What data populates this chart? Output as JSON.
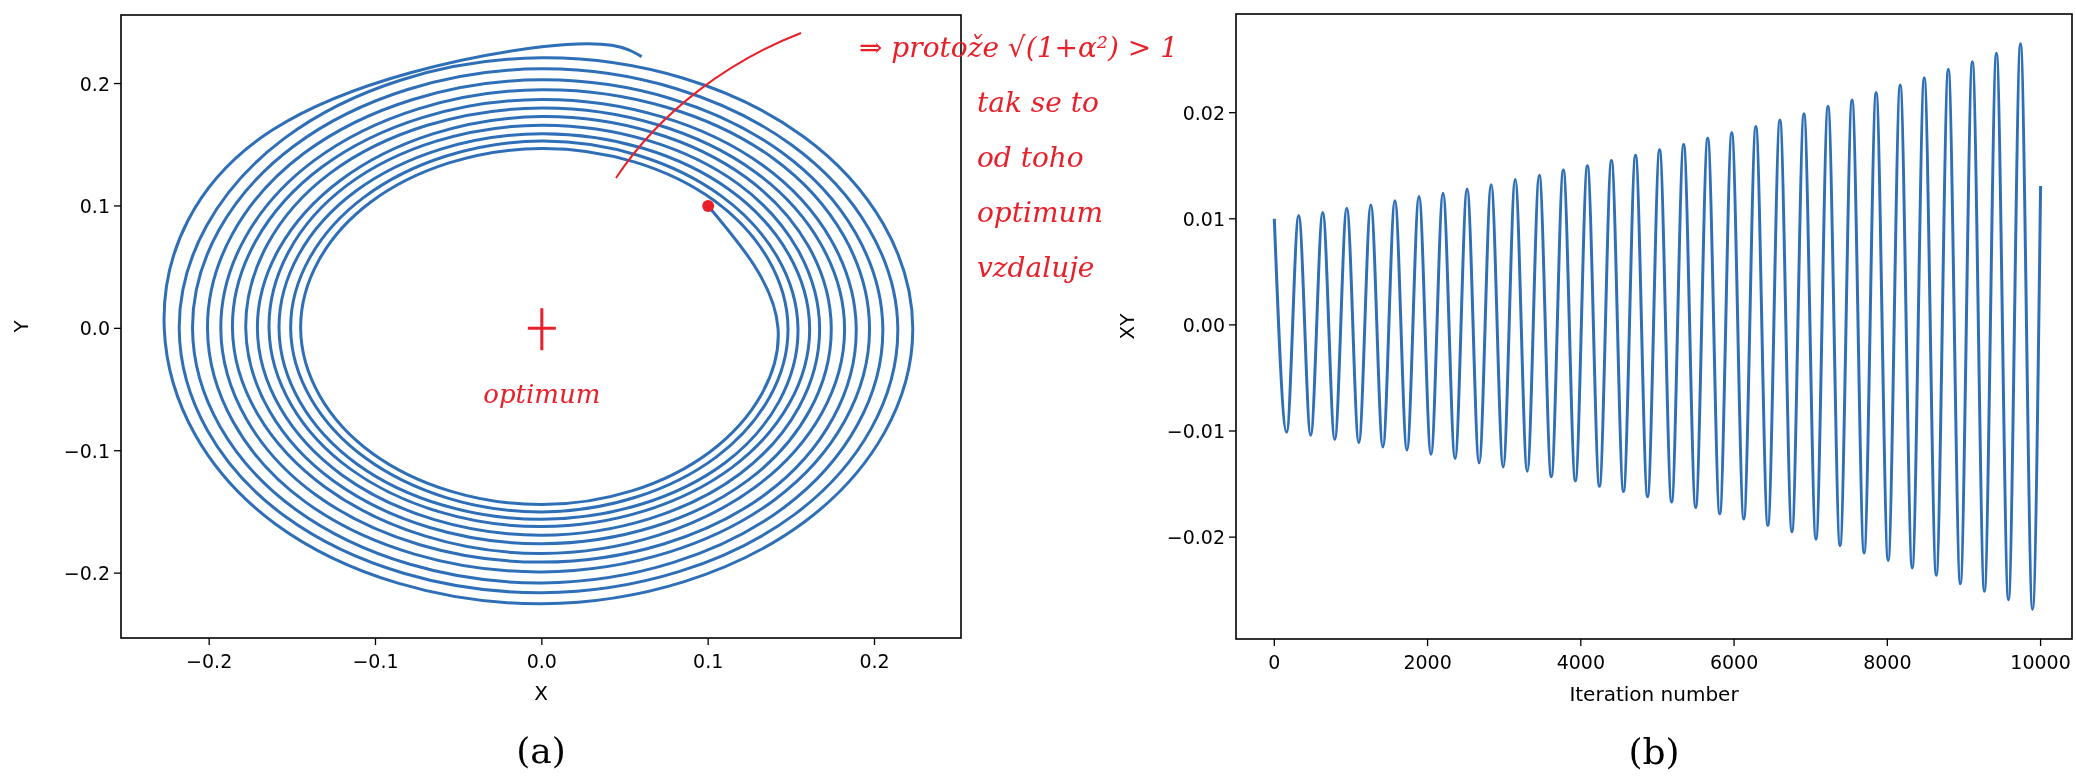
{
  "chart_data": [
    {
      "type": "line",
      "title": "(a)",
      "xlabel": "X",
      "ylabel": "Y",
      "xlim": [
        -0.253,
        0.252
      ],
      "ylim": [
        -0.253,
        0.256
      ],
      "xticks": [
        {
          "value": -0.2,
          "label": "−0.2"
        },
        {
          "value": -0.1,
          "label": "−0.1"
        },
        {
          "value": 0,
          "label": "0.0"
        },
        0.1,
        0.2
      ],
      "yticks": [
        {
          "value": -0.2,
          "label": "−0.2"
        },
        {
          "value": -0.1,
          "label": "−0.1"
        },
        {
          "value": 0,
          "label": "0.0"
        },
        0.1,
        0.2
      ],
      "grid": false,
      "annotations": [
        "⇒ protože √(1+α²) > 1 tak se to od toho optimum vzdaluje",
        {
          "text": "optimum",
          "x": 0,
          "y": 0
        }
      ],
      "series": [
        {
          "type": "line",
          "color": "#2e6fb7",
          "x": [
            0.1,
            0.142,
            0.101,
            0,
            -0.102,
            -0.145,
            -0.103,
            0,
            0.104,
            0.148,
            0.105,
            0,
            -0.106,
            -0.151,
            -0.107,
            0,
            0.108,
            0.154,
            0.11,
            0,
            -0.111,
            -0.158,
            -0.112,
            0,
            0.113,
            0.161,
            0.114,
            0,
            -0.115,
            -0.164,
            -0.117,
            0,
            0.118,
            0.167,
            0.119,
            0,
            -0.12,
            -0.171,
            -0.121,
            0,
            0.123,
            0.174,
            0.124,
            0,
            -0.125,
            -0.178,
            -0.127,
            0,
            0.128,
            0.182,
            0.129,
            0,
            -0.13,
            -0.186,
            -0.132,
            0,
            0.133,
            0.189,
            0.135,
            0,
            -0.136,
            -0.193,
            -0.137,
            0,
            0.139,
            0.197,
            0.14,
            0,
            -0.142,
            -0.201,
            -0.143,
            0,
            0.144,
            0.205,
            0.146,
            0,
            -0.148,
            -0.21,
            -0.149,
            0,
            0.15,
            0.214,
            0.152,
            0,
            -0.154,
            -0.218,
            -0.155,
            0,
            0.157,
            0.223,
            0.158,
            0,
            -0.16,
            -0.227,
            -0.162,
            0,
            0.06
          ],
          "values": [
            0.1,
            0,
            -0.101,
            -0.144,
            -0.102,
            0,
            0.103,
            0.147,
            0.104,
            0,
            -0.105,
            -0.15,
            -0.106,
            0,
            0.107,
            0.153,
            0.108,
            0,
            -0.11,
            -0.156,
            -0.111,
            0,
            0.112,
            0.159,
            0.113,
            0,
            -0.114,
            -0.162,
            -0.115,
            0,
            0.117,
            0.166,
            0.118,
            0,
            -0.119,
            -0.169,
            -0.12,
            0,
            0.121,
            0.173,
            0.123,
            0,
            -0.124,
            -0.176,
            -0.125,
            0,
            0.127,
            0.18,
            0.128,
            0,
            -0.129,
            -0.184,
            -0.13,
            0,
            0.132,
            0.187,
            0.133,
            0,
            -0.135,
            -0.191,
            -0.136,
            0,
            0.137,
            0.195,
            0.139,
            0,
            -0.14,
            -0.199,
            -0.142,
            0,
            0.143,
            0.203,
            0.144,
            0,
            -0.146,
            -0.208,
            -0.148,
            0,
            0.149,
            0.212,
            0.15,
            0,
            -0.152,
            -0.216,
            -0.154,
            0,
            0.155,
            0.221,
            0.157,
            0,
            -0.158,
            -0.225,
            -0.16,
            0,
            0.162,
            0.23,
            0.222
          ]
        },
        {
          "type": "scatter",
          "color": "#e8202a",
          "marker": "circle",
          "x": [
            0.1
          ],
          "values": [
            0.1
          ]
        },
        {
          "type": "scatter",
          "color": "#e8202a",
          "marker": "cross",
          "x": [
            0
          ],
          "values": [
            0
          ]
        }
      ]
    },
    {
      "type": "line",
      "title": "(b)",
      "xlabel": "Iteration number",
      "ylabel": "XY",
      "xlim": [
        -500,
        10410
      ],
      "ylim": [
        -0.0296,
        0.0293
      ],
      "xticks": [
        0,
        2000,
        4000,
        6000,
        8000,
        10000
      ],
      "yticks": [
        {
          "value": -0.02,
          "label": "−0.02"
        },
        {
          "value": -0.01,
          "label": "−0.01"
        },
        {
          "value": 0,
          "label": "0.00"
        },
        0.01,
        0.02
      ],
      "grid": false,
      "series": [
        {
          "type": "line",
          "color": "#2e6fb7",
          "x": [
            0,
            161,
            318,
            475,
            632,
            789,
            946,
            1103,
            1260,
            1417,
            1574,
            1731,
            1888,
            2045,
            2202,
            2359,
            2516,
            2673,
            2830,
            2987,
            3144,
            3301,
            3458,
            3615,
            3772,
            3929,
            4086,
            4243,
            4400,
            4557,
            4714,
            4871,
            5028,
            5185,
            5342,
            5499,
            5656,
            5813,
            5970,
            6127,
            6284,
            6441,
            6598,
            6755,
            6912,
            7069,
            7226,
            7383,
            7540,
            7697,
            7854,
            8011,
            8168,
            8325,
            8482,
            8639,
            8796,
            8953,
            9110,
            9267,
            9424,
            9581,
            9738,
            9895,
            10000
          ],
          "values": [
            0.01,
            -0.0101,
            0.0103,
            -0.0104,
            0.0106,
            -0.0108,
            0.011,
            -0.0111,
            0.0113,
            -0.0115,
            0.0117,
            -0.0118,
            0.0121,
            -0.0122,
            0.0124,
            -0.0126,
            0.0128,
            -0.013,
            0.0132,
            -0.0134,
            0.0137,
            -0.0138,
            0.0141,
            -0.0143,
            0.0146,
            -0.0147,
            0.015,
            -0.0152,
            0.0155,
            -0.0157,
            0.016,
            -0.0162,
            0.0165,
            -0.0167,
            0.017,
            -0.0172,
            0.0176,
            -0.0178,
            0.0181,
            -0.0183,
            0.0187,
            -0.0189,
            0.0193,
            -0.0195,
            0.0199,
            -0.0202,
            0.0206,
            -0.0208,
            0.0212,
            -0.0215,
            0.0219,
            -0.0222,
            0.0226,
            -0.0229,
            0.0233,
            -0.0236,
            0.0241,
            -0.0244,
            0.0248,
            -0.0251,
            0.0256,
            -0.0259,
            0.0265,
            -0.0268,
            0.0131
          ]
        }
      ]
    }
  ]
}
